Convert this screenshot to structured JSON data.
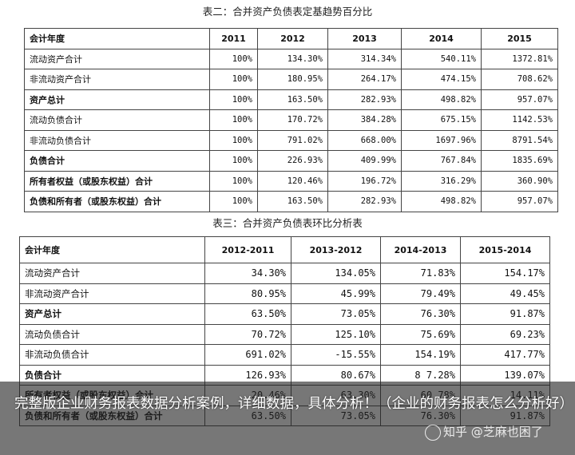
{
  "table1": {
    "caption": "表二：合并资产负债表定基趋势百分比",
    "headers": [
      "会计年度",
      "2011",
      "2012",
      "2013",
      "2014",
      "2015"
    ],
    "rows": [
      {
        "label": "流动资产合计",
        "bold": false,
        "values": [
          "100%",
          "134.30%",
          "314.34%",
          "540.11%",
          "1372.81%"
        ]
      },
      {
        "label": "非流动资产合计",
        "bold": false,
        "values": [
          "100%",
          "180.95%",
          "264.17%",
          "474.15%",
          "708.62%"
        ]
      },
      {
        "label": "资产总计",
        "bold": true,
        "values": [
          "100%",
          "163.50%",
          "282.93%",
          "498.82%",
          "957.07%"
        ]
      },
      {
        "label": "流动负债合计",
        "bold": false,
        "values": [
          "100%",
          "170.72%",
          "384.28%",
          "675.15%",
          "1142.53%"
        ]
      },
      {
        "label": "非流动负债合计",
        "bold": false,
        "values": [
          "100%",
          "791.02%",
          "668.00%",
          "1697.96%",
          "8791.54%"
        ]
      },
      {
        "label": "负债合计",
        "bold": true,
        "values": [
          "100%",
          "226.93%",
          "409.99%",
          "767.84%",
          "1835.69%"
        ]
      },
      {
        "label": "所有者权益（或股东权益）合计",
        "bold": true,
        "values": [
          "100%",
          "120.46%",
          "196.72%",
          "316.29%",
          "360.90%"
        ]
      },
      {
        "label": "负债和所有者（或股东权益）合计",
        "bold": true,
        "values": [
          "100%",
          "163.50%",
          "282.93%",
          "498.82%",
          "957.07%"
        ]
      }
    ]
  },
  "table2": {
    "caption": "表三：合并资产负债表环比分析表",
    "headers": [
      "会计年度",
      "2012-2011",
      "2013-2012",
      "2014-2013",
      "2015-2014"
    ],
    "rows": [
      {
        "label": "流动资产合计",
        "bold": false,
        "values": [
          "34.30%",
          "134.05%",
          "71.83%",
          "154.17%"
        ]
      },
      {
        "label": "非流动资产合计",
        "bold": false,
        "values": [
          "80.95%",
          "45.99%",
          "79.49%",
          "49.45%"
        ]
      },
      {
        "label": "资产总计",
        "bold": true,
        "values": [
          "63.50%",
          "73.05%",
          "76.30%",
          "91.87%"
        ]
      },
      {
        "label": "流动负债合计",
        "bold": false,
        "values": [
          "70.72%",
          "125.10%",
          "75.69%",
          "69.23%"
        ]
      },
      {
        "label": "非流动负债合计",
        "bold": false,
        "values": [
          "691.02%",
          "-15.55%",
          "154.19%",
          "417.77%"
        ]
      },
      {
        "label": "负债合计",
        "bold": true,
        "values": [
          "126.93%",
          "80.67%",
          "8 7.28%",
          "139.07%"
        ]
      },
      {
        "label": "所有者权益（或股东权益）合计",
        "bold": true,
        "values": [
          "20.46%",
          "63.30%",
          "60.78%",
          "14.11%"
        ]
      },
      {
        "label": "负债和所有者（或股东权益）合计",
        "bold": true,
        "values": [
          "63.50%",
          "73.05%",
          "76.30%",
          "91.87%"
        ]
      }
    ]
  },
  "overlay": {
    "text": "完整版企业财务报表数据分析案例，详细数据，具体分析！（企业的财务报表怎么分析好）"
  },
  "watermark": {
    "text": "知乎 @芝麻也困了"
  }
}
